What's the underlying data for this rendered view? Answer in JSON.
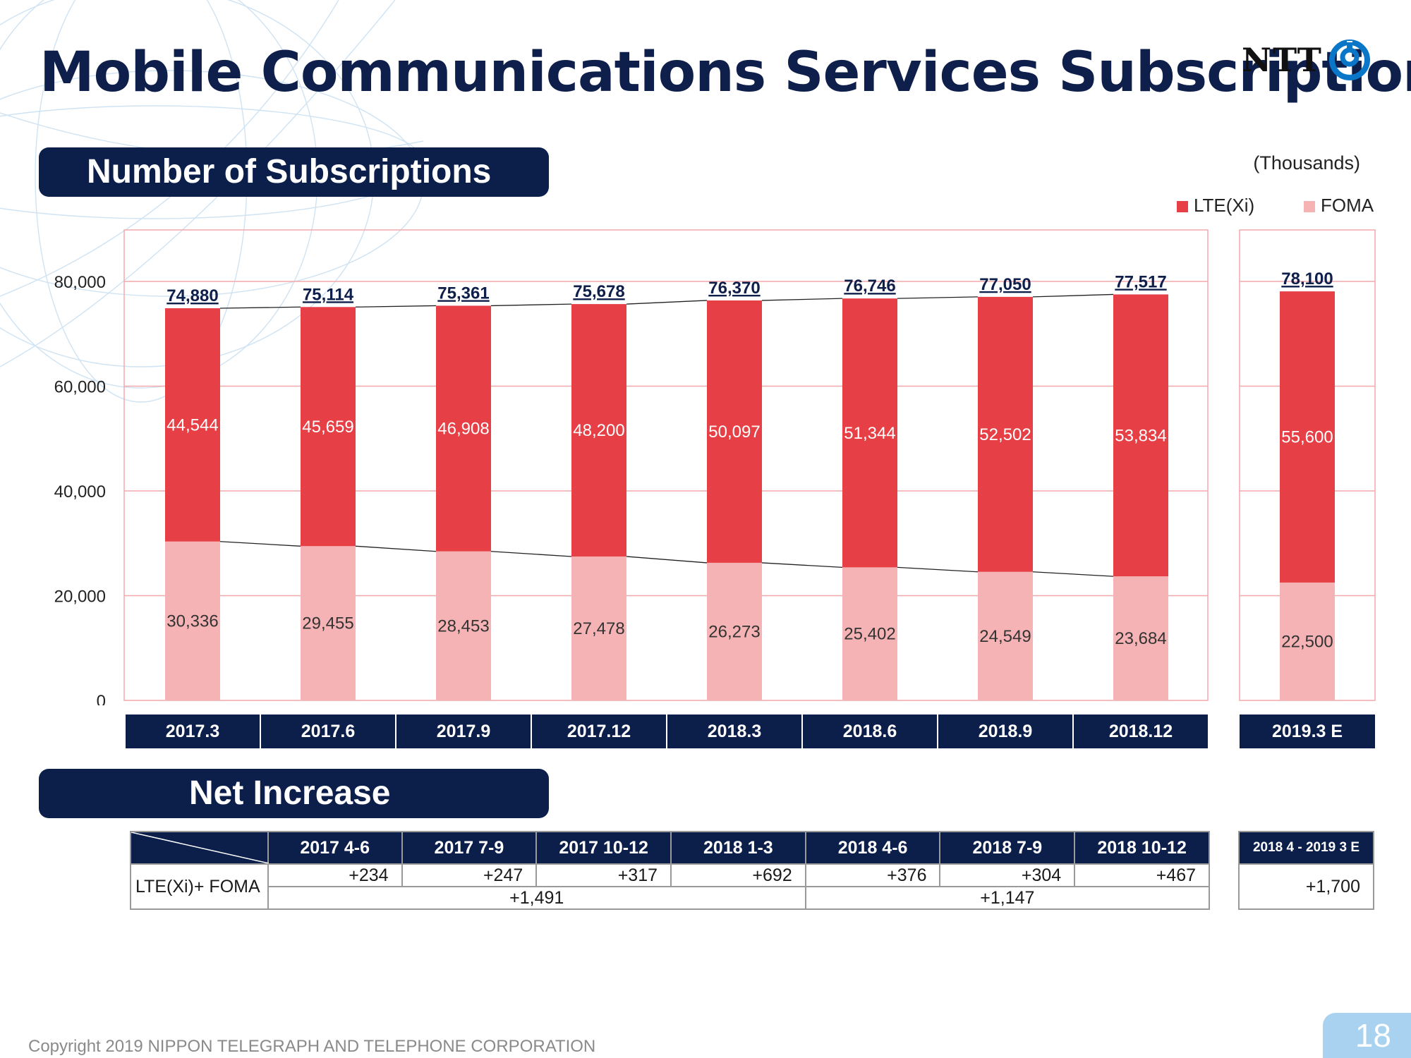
{
  "title": "Mobile Communications Services Subscriptions",
  "logo": {
    "text": "NTT"
  },
  "sections": {
    "subscriptions": "Number of Subscriptions",
    "net_increase": "Net Increase"
  },
  "units": "(Thousands)",
  "legend": {
    "lte": "LTE(Xi)",
    "foma": "FOMA"
  },
  "colors": {
    "lte": "#e64046",
    "foma": "#f6b3b5",
    "navy": "#0c1f4b",
    "gridline": "#f3a9ab",
    "total_label": "#0f1f4b"
  },
  "chart_data": {
    "type": "bar",
    "stacked": true,
    "yticks": [
      "0",
      "20,000",
      "40,000",
      "60,000",
      "80,000"
    ],
    "ylim": [
      0,
      80000
    ],
    "grid": true,
    "legend_position": "top-right",
    "categories": [
      "2017.3",
      "2017.6",
      "2017.9",
      "2017.12",
      "2018.3",
      "2018.6",
      "2018.9",
      "2018.12",
      "2019.3 E"
    ],
    "series": [
      {
        "name": "FOMA",
        "values": [
          30336,
          29455,
          28453,
          27478,
          26273,
          25402,
          24549,
          23684,
          22500
        ],
        "labels": [
          "30,336",
          "29,455",
          "28,453",
          "27,478",
          "26,273",
          "25,402",
          "24,549",
          "23,684",
          "22,500"
        ]
      },
      {
        "name": "LTE(Xi)",
        "values": [
          44544,
          45659,
          46908,
          48200,
          50097,
          51344,
          52502,
          53834,
          55600
        ],
        "labels": [
          "44,544",
          "45,659",
          "46,908",
          "48,200",
          "50,097",
          "51,344",
          "52,502",
          "53,834",
          "55,600"
        ]
      }
    ],
    "totals": [
      74880,
      75114,
      75361,
      75678,
      76370,
      76746,
      77050,
      77517,
      78100
    ],
    "total_labels": [
      "74,880",
      "75,114",
      "75,361",
      "75,678",
      "76,370",
      "76,746",
      "77,050",
      "77,517",
      "78,100"
    ]
  },
  "net_increase_table": {
    "row_label": "LTE(Xi)+ FOMA",
    "periods": [
      "2017 4-6",
      "2017 7-9",
      "2017 10-12",
      "2018 1-3",
      "2018 4-6",
      "2018 7-9",
      "2018 10-12"
    ],
    "values": [
      "+234",
      "+247",
      "+317",
      "+692",
      "+376",
      "+304",
      "+467"
    ],
    "subtotals": [
      "+1,491",
      "+1,147"
    ],
    "forecast_period": "2018 4 - 2019 3 E",
    "forecast_value": "+1,700"
  },
  "footer": "Copyright 2019 NIPPON TELEGRAPH AND TELEPHONE CORPORATION",
  "page_number": "18"
}
